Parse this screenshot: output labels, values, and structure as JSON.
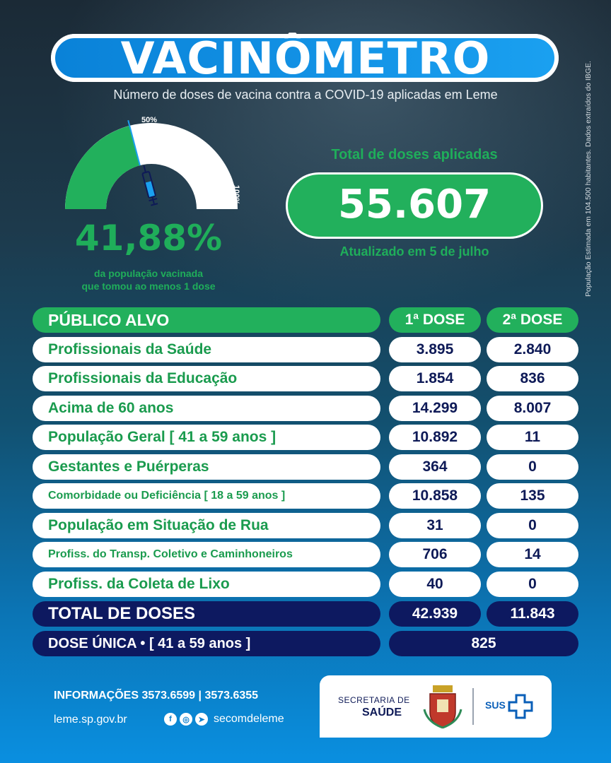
{
  "header": {
    "title": "VACINÔMETRO",
    "subtitle": "Número de doses de vacina contra a COVID-19 aplicadas em Leme",
    "side_note": "População Estimada em 104.500 habitantes. Dados extraídos do IBGE."
  },
  "gauge": {
    "label_50": "50%",
    "label_100": "100%",
    "fill_fraction": 0.4188,
    "percent_text": "41,88%",
    "caption_line1": "da população vacinada",
    "caption_line2": "que tomou ao menos 1 dose",
    "icon": "syringe-icon",
    "colors": {
      "fill": "#22b05c",
      "empty": "#ffffff"
    }
  },
  "total": {
    "label": "Total de doses aplicadas",
    "value": "55.607",
    "updated": "Atualizado em 5 de julho"
  },
  "table": {
    "header": {
      "name": "PÚBLICO ALVO",
      "dose1": "1ª DOSE",
      "dose2": "2ª DOSE"
    },
    "rows": [
      {
        "name": "Profissionais da Saúde",
        "dose1": "3.895",
        "dose2": "2.840"
      },
      {
        "name": "Profissionais da Educação",
        "dose1": "1.854",
        "dose2": "836"
      },
      {
        "name": "Acima de 60 anos",
        "dose1": "14.299",
        "dose2": "8.007"
      },
      {
        "name": "População Geral [ 41 a 59 anos ]",
        "dose1": "10.892",
        "dose2": "11"
      },
      {
        "name": "Gestantes e Puérperas",
        "dose1": "364",
        "dose2": "0"
      },
      {
        "name": "Comorbidade ou Deficiência [ 18 a 59 anos ]",
        "dose1": "10.858",
        "dose2": "135"
      },
      {
        "name": "População em Situação de Rua",
        "dose1": "31",
        "dose2": "0"
      },
      {
        "name": "Profiss. do Transp. Coletivo e Caminhoneiros",
        "dose1": "706",
        "dose2": "14"
      },
      {
        "name": "Profiss. da Coleta de Lixo",
        "dose1": "40",
        "dose2": "0"
      }
    ],
    "total_row": {
      "name": "TOTAL DE DOSES",
      "dose1": "42.939",
      "dose2": "11.843"
    },
    "single_dose_row": {
      "name": "DOSE ÚNICA • [ 41 a 59 anos ]",
      "value": "825"
    },
    "colors": {
      "green": "#22b05c",
      "navy": "#0d1960"
    }
  },
  "footer": {
    "info": "INFORMAÇÕES 3573.6599  |  3573.6355",
    "site": "leme.sp.gov.br",
    "handle": "secomdeleme",
    "social_icons": [
      "facebook-icon",
      "instagram-icon",
      "telegram-icon"
    ],
    "secretaria_line1": "SECRETARIA DE",
    "secretaria_line2": "SAÚDE",
    "sus": "SUS"
  }
}
